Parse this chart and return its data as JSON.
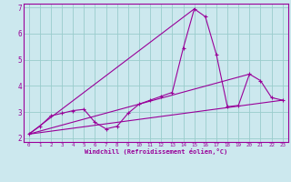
{
  "xlabel": "Windchill (Refroidissement éolien,°C)",
  "bg_color": "#cce8ee",
  "line_color": "#990099",
  "grid_color": "#99cccc",
  "xlim": [
    -0.5,
    23.5
  ],
  "ylim": [
    1.85,
    7.15
  ],
  "xticks": [
    0,
    1,
    2,
    3,
    4,
    5,
    6,
    7,
    8,
    9,
    10,
    11,
    12,
    13,
    14,
    15,
    16,
    17,
    18,
    19,
    20,
    21,
    22,
    23
  ],
  "yticks": [
    2,
    3,
    4,
    5,
    6,
    7
  ],
  "series": [
    [
      0,
      2.15
    ],
    [
      1,
      2.45
    ],
    [
      2,
      2.85
    ],
    [
      3,
      2.95
    ],
    [
      4,
      3.05
    ],
    [
      5,
      3.1
    ],
    [
      6,
      2.6
    ],
    [
      7,
      2.35
    ],
    [
      8,
      2.45
    ],
    [
      9,
      2.95
    ],
    [
      10,
      3.3
    ],
    [
      11,
      3.45
    ],
    [
      12,
      3.6
    ],
    [
      13,
      3.75
    ],
    [
      14,
      5.45
    ],
    [
      15,
      6.95
    ],
    [
      16,
      6.65
    ],
    [
      17,
      5.2
    ],
    [
      18,
      3.2
    ],
    [
      19,
      3.25
    ],
    [
      20,
      4.45
    ],
    [
      21,
      4.2
    ],
    [
      22,
      3.55
    ],
    [
      23,
      3.45
    ]
  ],
  "line2": [
    [
      0,
      2.15
    ],
    [
      23,
      3.45
    ]
  ],
  "line3": [
    [
      0,
      2.15
    ],
    [
      20,
      4.45
    ]
  ],
  "line4": [
    [
      0,
      2.15
    ],
    [
      15,
      6.95
    ]
  ]
}
